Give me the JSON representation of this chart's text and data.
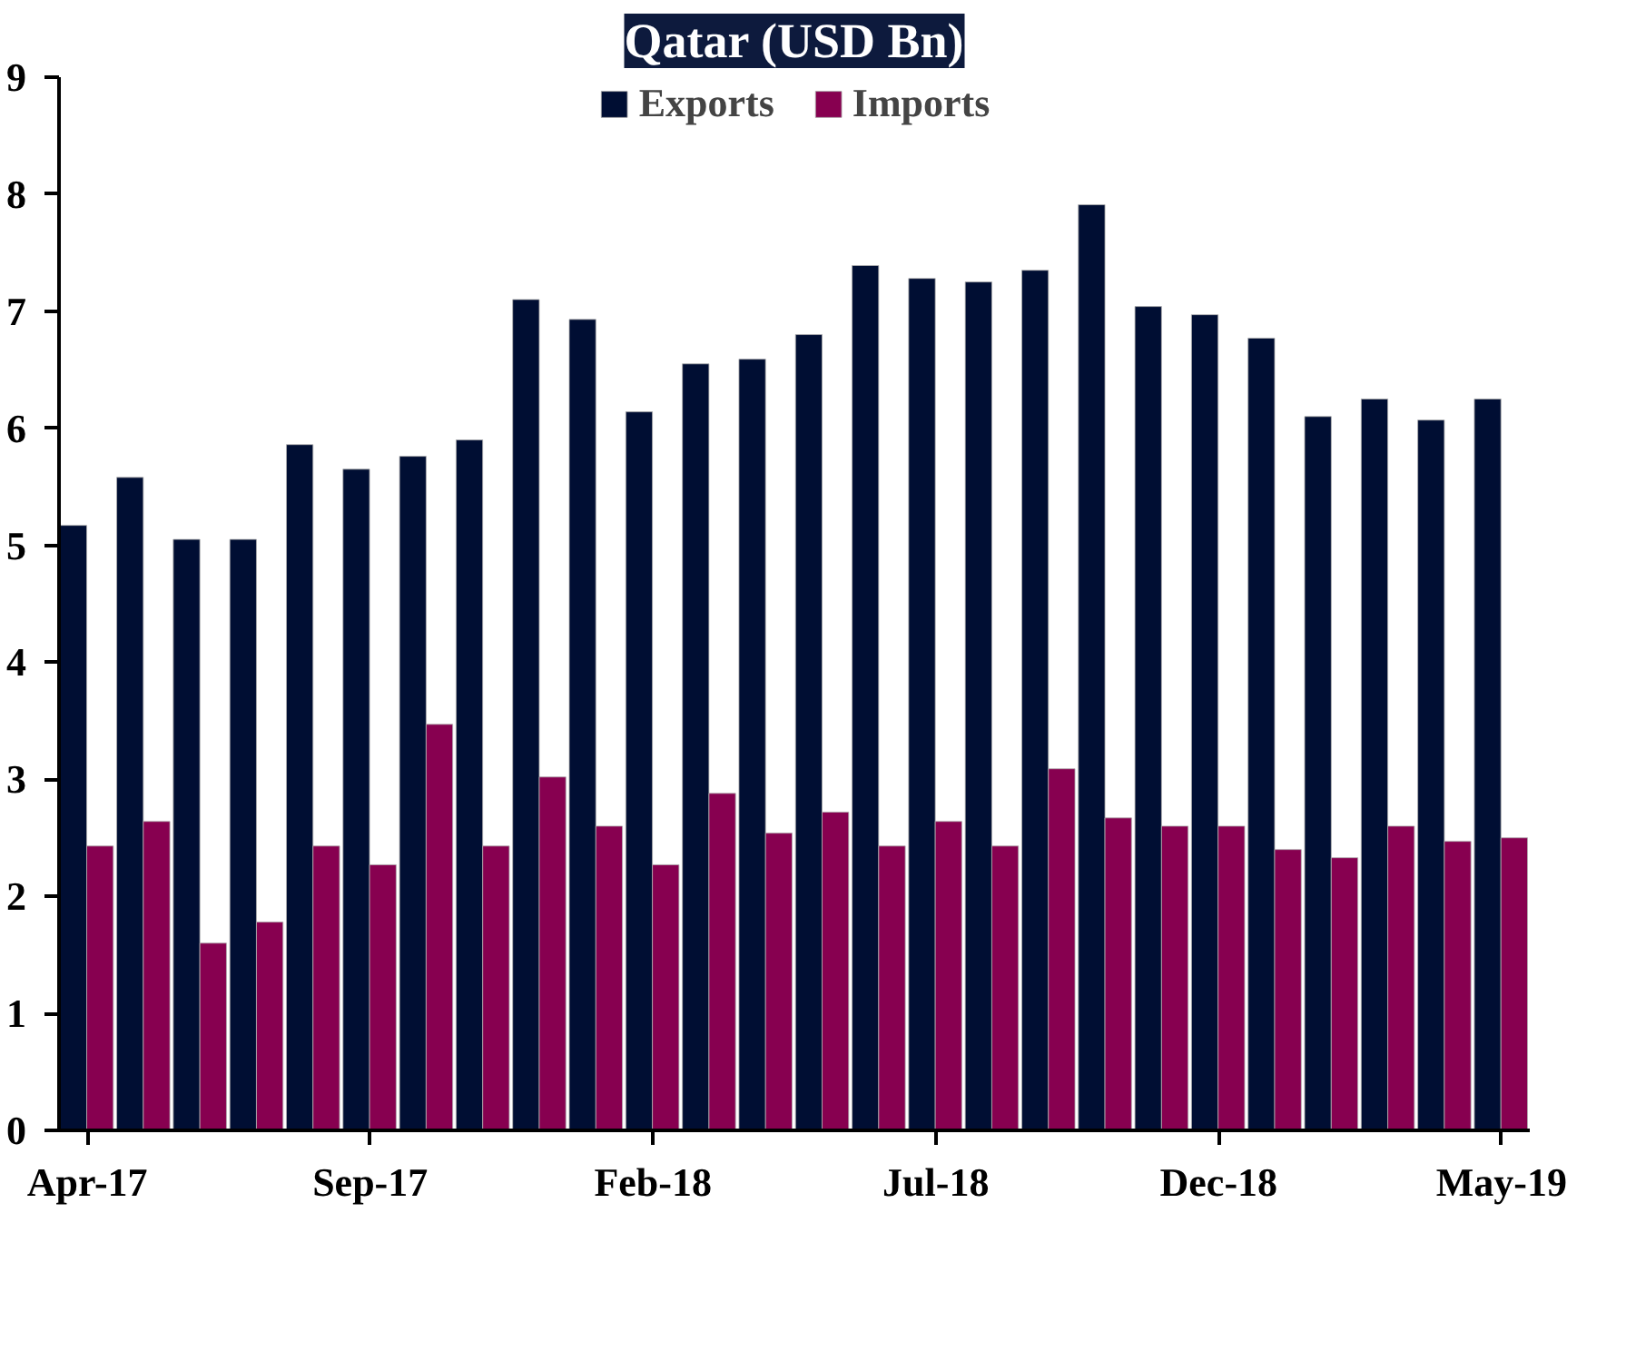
{
  "chart_data": {
    "type": "bar",
    "title": "Qatar (USD Bn)",
    "categories": [
      "Apr-17",
      null,
      null,
      null,
      null,
      "Sep-17",
      null,
      null,
      null,
      null,
      "Feb-18",
      null,
      null,
      null,
      null,
      "Jul-18",
      null,
      null,
      null,
      null,
      "Dec-18",
      null,
      null,
      null,
      null,
      "May-19"
    ],
    "series": [
      {
        "name": "Exports",
        "color": "#000e33",
        "values": [
          5.17,
          5.58,
          5.05,
          5.05,
          5.86,
          5.65,
          5.76,
          5.9,
          7.1,
          6.93,
          6.14,
          6.55,
          6.59,
          6.8,
          7.39,
          7.28,
          7.25,
          7.35,
          7.91,
          7.04,
          6.97,
          6.77,
          6.1,
          6.25,
          6.07,
          6.25
        ]
      },
      {
        "name": "Imports",
        "color": "#870050",
        "values": [
          2.43,
          2.64,
          1.6,
          1.78,
          2.43,
          2.27,
          3.47,
          2.43,
          3.02,
          2.6,
          2.27,
          2.88,
          2.54,
          2.72,
          2.43,
          2.64,
          2.43,
          3.09,
          2.67,
          2.6,
          2.6,
          2.4,
          2.33,
          2.6,
          2.47,
          2.5
        ]
      }
    ],
    "ylim": [
      0,
      9
    ],
    "yticks": [
      0,
      1,
      2,
      3,
      4,
      5,
      6,
      7,
      8,
      9
    ],
    "grid": false,
    "legend": "top"
  }
}
